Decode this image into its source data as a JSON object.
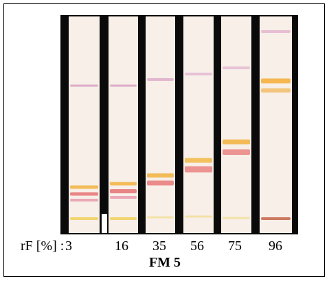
{
  "figure": {
    "axis_label": "rF [%] :",
    "lanes": [
      "3",
      "16",
      "35",
      "56",
      "75",
      "96"
    ],
    "caption": "FM 5"
  }
}
